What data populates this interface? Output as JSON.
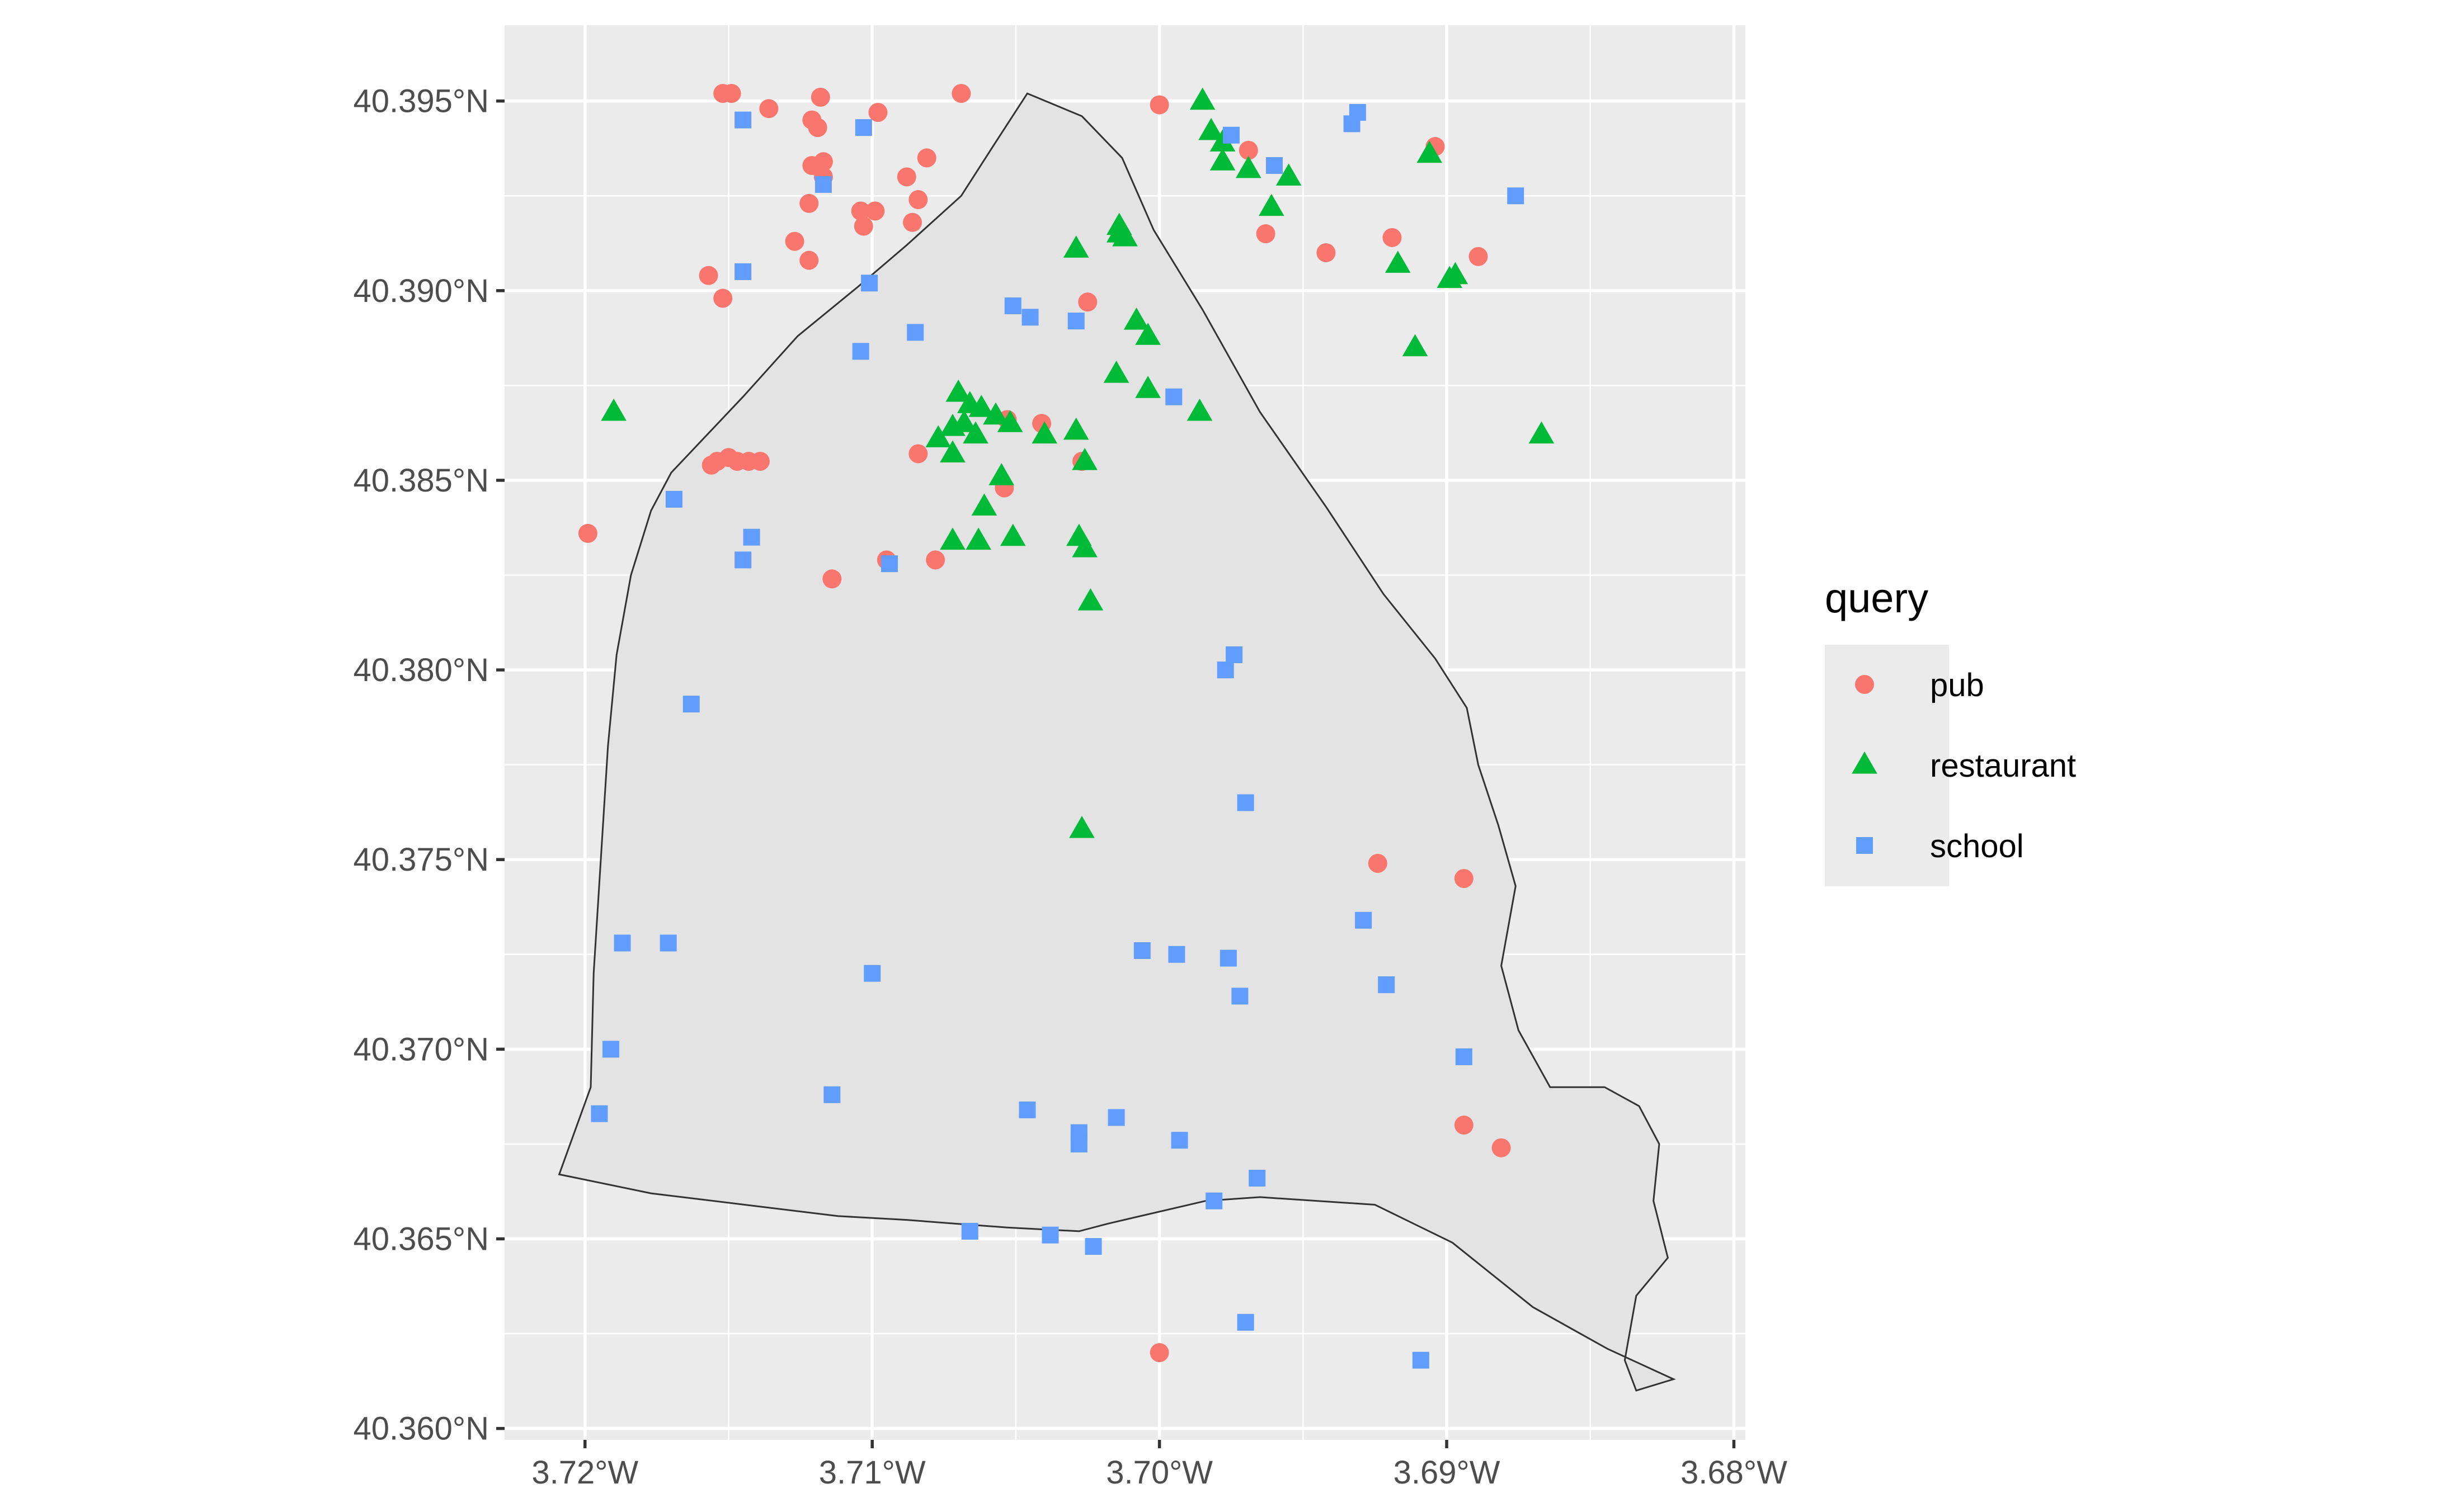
{
  "chart_data": {
    "type": "scatter",
    "title": "",
    "xlabel": "",
    "ylabel": "",
    "xlim": [
      -3.7228,
      -3.6796
    ],
    "ylim": [
      40.3597,
      40.397
    ],
    "grid": true,
    "legend_position": "right",
    "panel_background": "#EBEBEB",
    "x_ticks": [
      {
        "value": -3.72,
        "label": "3.72°W"
      },
      {
        "value": -3.71,
        "label": "3.71°W"
      },
      {
        "value": -3.7,
        "label": "3.70°W"
      },
      {
        "value": -3.69,
        "label": "3.69°W"
      },
      {
        "value": -3.68,
        "label": "3.68°W"
      }
    ],
    "y_ticks": [
      {
        "value": 40.36,
        "label": "40.360°N"
      },
      {
        "value": 40.365,
        "label": "40.365°N"
      },
      {
        "value": 40.37,
        "label": "40.370°N"
      },
      {
        "value": 40.375,
        "label": "40.375°N"
      },
      {
        "value": 40.38,
        "label": "40.380°N"
      },
      {
        "value": 40.385,
        "label": "40.385°N"
      },
      {
        "value": 40.39,
        "label": "40.390°N"
      },
      {
        "value": 40.395,
        "label": "40.395°N"
      }
    ],
    "legend": {
      "title": "query",
      "items": [
        {
          "label": "pub",
          "shape": "circle",
          "color": "#F8766D"
        },
        {
          "label": "restaurant",
          "shape": "triangle",
          "color": "#00BA38"
        },
        {
          "label": "school",
          "shape": "square",
          "color": "#619CFF"
        }
      ]
    },
    "boundary": {
      "fill": "#E3E3E3",
      "stroke": "#333333",
      "coordinates": [
        [
          -3.7046,
          40.3952
        ],
        [
          -3.7027,
          40.3946
        ],
        [
          -3.7013,
          40.3935
        ],
        [
          -3.7002,
          40.3916
        ],
        [
          -3.6985,
          40.3895
        ],
        [
          -3.6965,
          40.3868
        ],
        [
          -3.6942,
          40.3843
        ],
        [
          -3.6922,
          40.382
        ],
        [
          -3.6904,
          40.3803
        ],
        [
          -3.6893,
          40.379
        ],
        [
          -3.6889,
          40.3775
        ],
        [
          -3.6882,
          40.3759
        ],
        [
          -3.6876,
          40.3743
        ],
        [
          -3.6881,
          40.3722
        ],
        [
          -3.6875,
          40.3705
        ],
        [
          -3.6864,
          40.369
        ],
        [
          -3.6845,
          40.369
        ],
        [
          -3.6833,
          40.3685
        ],
        [
          -3.6826,
          40.3675
        ],
        [
          -3.6828,
          40.366
        ],
        [
          -3.6823,
          40.3645
        ],
        [
          -3.6834,
          40.3635
        ],
        [
          -3.6838,
          40.3618
        ],
        [
          -3.6834,
          40.361
        ],
        [
          -3.6821,
          40.3613
        ],
        [
          -3.6844,
          40.3621
        ],
        [
          -3.687,
          40.3632
        ],
        [
          -3.6898,
          40.3649
        ],
        [
          -3.6925,
          40.3659
        ],
        [
          -3.6965,
          40.3661
        ],
        [
          -3.6984,
          40.366
        ],
        [
          -3.7018,
          40.3654
        ],
        [
          -3.7028,
          40.3652
        ],
        [
          -3.7053,
          40.3653
        ],
        [
          -3.7071,
          40.3654
        ],
        [
          -3.7088,
          40.3655
        ],
        [
          -3.7112,
          40.3656
        ],
        [
          -3.7177,
          40.3662
        ],
        [
          -3.7209,
          40.3667
        ],
        [
          -3.7198,
          40.369
        ],
        [
          -3.7197,
          40.372
        ],
        [
          -3.7192,
          40.378
        ],
        [
          -3.7189,
          40.3804
        ],
        [
          -3.7184,
          40.3825
        ],
        [
          -3.7177,
          40.3842
        ],
        [
          -3.717,
          40.3852
        ],
        [
          -3.7145,
          40.3872
        ],
        [
          -3.7126,
          40.3888
        ],
        [
          -3.7105,
          40.3901
        ],
        [
          -3.7088,
          40.3912
        ],
        [
          -3.7069,
          40.3925
        ],
        [
          -3.7058,
          40.3938
        ]
      ]
    },
    "series": [
      {
        "name": "pub",
        "points": [
          [
            -3.7152,
            40.3952
          ],
          [
            -3.7149,
            40.3952
          ],
          [
            -3.7136,
            40.3948
          ],
          [
            -3.7118,
            40.3951
          ],
          [
            -3.7098,
            40.3947
          ],
          [
            -3.7069,
            40.3952
          ],
          [
            -3.7,
            40.3949
          ],
          [
            -3.7121,
            40.3945
          ],
          [
            -3.7119,
            40.3943
          ],
          [
            -3.7121,
            40.3933
          ],
          [
            -3.7117,
            40.3934
          ],
          [
            -3.7117,
            40.393
          ],
          [
            -3.7088,
            40.393
          ],
          [
            -3.7081,
            40.3935
          ],
          [
            -3.7122,
            40.3923
          ],
          [
            -3.7084,
            40.3924
          ],
          [
            -3.7104,
            40.3921
          ],
          [
            -3.7099,
            40.3921
          ],
          [
            -3.7086,
            40.3918
          ],
          [
            -3.7103,
            40.3917
          ],
          [
            -3.7127,
            40.3913
          ],
          [
            -3.7122,
            40.3908
          ],
          [
            -3.7157,
            40.3904
          ],
          [
            -3.7152,
            40.3898
          ],
          [
            -3.7025,
            40.3897
          ],
          [
            -3.7156,
            40.3854
          ],
          [
            -3.7154,
            40.3855
          ],
          [
            -3.715,
            40.3856
          ],
          [
            -3.7147,
            40.3855
          ],
          [
            -3.7143,
            40.3855
          ],
          [
            -3.7139,
            40.3855
          ],
          [
            -3.7084,
            40.3857
          ],
          [
            -3.7053,
            40.3866
          ],
          [
            -3.7041,
            40.3865
          ],
          [
            -3.7027,
            40.3855
          ],
          [
            -3.7054,
            40.3848
          ],
          [
            -3.7095,
            40.3829
          ],
          [
            -3.7078,
            40.3829
          ],
          [
            -3.7114,
            40.3824
          ],
          [
            -3.7199,
            40.3836
          ],
          [
            -3.6969,
            40.3937
          ],
          [
            -3.6904,
            40.3938
          ],
          [
            -3.6963,
            40.3915
          ],
          [
            -3.6942,
            40.391
          ],
          [
            -3.6919,
            40.3914
          ],
          [
            -3.6889,
            40.3909
          ],
          [
            -3.6924,
            40.3749
          ],
          [
            -3.6894,
            40.3745
          ],
          [
            -3.6894,
            40.368
          ],
          [
            -3.6881,
            40.3674
          ],
          [
            -3.7,
            40.362
          ]
        ]
      },
      {
        "name": "restaurant",
        "points": [
          [
            -3.6985,
            40.395
          ],
          [
            -3.6982,
            40.3942
          ],
          [
            -3.6978,
            40.3939
          ],
          [
            -3.6969,
            40.3932
          ],
          [
            -3.6978,
            40.3934
          ],
          [
            -3.6955,
            40.393
          ],
          [
            -3.6961,
            40.3922
          ],
          [
            -3.6906,
            40.3936
          ],
          [
            -3.6917,
            40.3907
          ],
          [
            -3.6899,
            40.3903
          ],
          [
            -3.6897,
            40.3904
          ],
          [
            -3.6911,
            40.3885
          ],
          [
            -3.6867,
            40.3862
          ],
          [
            -3.7029,
            40.3911
          ],
          [
            -3.7014,
            40.3917
          ],
          [
            -3.7014,
            40.3915
          ],
          [
            -3.7012,
            40.3914
          ],
          [
            -3.7008,
            40.3892
          ],
          [
            -3.7004,
            40.3888
          ],
          [
            -3.7015,
            40.3878
          ],
          [
            -3.7004,
            40.3874
          ],
          [
            -3.6986,
            40.3868
          ],
          [
            -3.719,
            40.3868
          ],
          [
            -3.707,
            40.3873
          ],
          [
            -3.7066,
            40.387
          ],
          [
            -3.7062,
            40.3869
          ],
          [
            -3.7057,
            40.3867
          ],
          [
            -3.7052,
            40.3865
          ],
          [
            -3.7068,
            40.3865
          ],
          [
            -3.7072,
            40.3864
          ],
          [
            -3.7064,
            40.3862
          ],
          [
            -3.7077,
            40.3861
          ],
          [
            -3.7072,
            40.3857
          ],
          [
            -3.704,
            40.3862
          ],
          [
            -3.7029,
            40.3863
          ],
          [
            -3.7026,
            40.3855
          ],
          [
            -3.7055,
            40.3851
          ],
          [
            -3.7061,
            40.3843
          ],
          [
            -3.7072,
            40.3834
          ],
          [
            -3.7063,
            40.3834
          ],
          [
            -3.7051,
            40.3835
          ],
          [
            -3.7028,
            40.3835
          ],
          [
            -3.7026,
            40.3832
          ],
          [
            -3.7024,
            40.3818
          ],
          [
            -3.7027,
            40.3758
          ]
        ]
      },
      {
        "name": "school",
        "points": [
          [
            -3.7145,
            40.3945
          ],
          [
            -3.7103,
            40.3943
          ],
          [
            -3.7117,
            40.3928
          ],
          [
            -3.6975,
            40.3941
          ],
          [
            -3.696,
            40.3933
          ],
          [
            -3.6931,
            40.3947
          ],
          [
            -3.6933,
            40.3944
          ],
          [
            -3.6876,
            40.3925
          ],
          [
            -3.7145,
            40.3905
          ],
          [
            -3.7101,
            40.3902
          ],
          [
            -3.7051,
            40.3896
          ],
          [
            -3.7045,
            40.3893
          ],
          [
            -3.7029,
            40.3892
          ],
          [
            -3.7085,
            40.3889
          ],
          [
            -3.7104,
            40.3884
          ],
          [
            -3.6995,
            40.3872
          ],
          [
            -3.7169,
            40.3845
          ],
          [
            -3.7142,
            40.3835
          ],
          [
            -3.7145,
            40.3829
          ],
          [
            -3.7094,
            40.3828
          ],
          [
            -3.6974,
            40.3804
          ],
          [
            -3.6977,
            40.38
          ],
          [
            -3.7163,
            40.3791
          ],
          [
            -3.697,
            40.3765
          ],
          [
            -3.7187,
            40.3728
          ],
          [
            -3.7171,
            40.3728
          ],
          [
            -3.71,
            40.372
          ],
          [
            -3.7006,
            40.3726
          ],
          [
            -3.6994,
            40.3725
          ],
          [
            -3.6976,
            40.3724
          ],
          [
            -3.6972,
            40.3714
          ],
          [
            -3.6929,
            40.3734
          ],
          [
            -3.6921,
            40.3717
          ],
          [
            -3.7191,
            40.37
          ],
          [
            -3.7195,
            40.3683
          ],
          [
            -3.7114,
            40.3688
          ],
          [
            -3.7046,
            40.3684
          ],
          [
            -3.7015,
            40.3682
          ],
          [
            -3.7028,
            40.3678
          ],
          [
            -3.7028,
            40.3675
          ],
          [
            -3.6993,
            40.3676
          ],
          [
            -3.6966,
            40.3666
          ],
          [
            -3.6981,
            40.366
          ],
          [
            -3.6894,
            40.3698
          ],
          [
            -3.7066,
            40.3652
          ],
          [
            -3.7038,
            40.3651
          ],
          [
            -3.7023,
            40.3648
          ],
          [
            -3.697,
            40.3628
          ],
          [
            -3.6909,
            40.3618
          ]
        ]
      }
    ]
  }
}
